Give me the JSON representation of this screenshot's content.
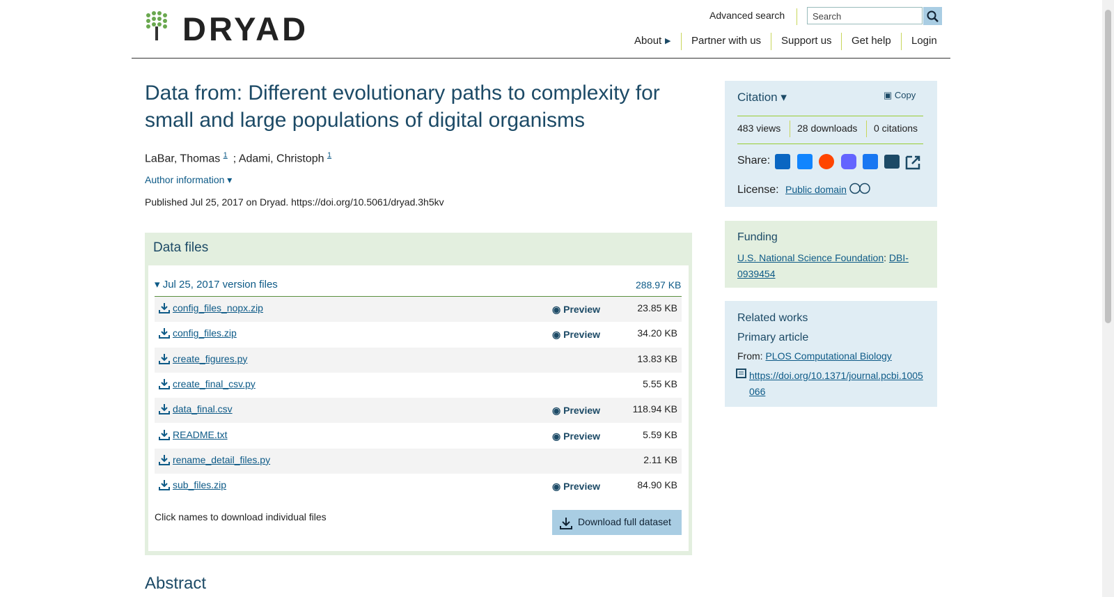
{
  "header": {
    "logo": "DRYAD",
    "advanced_search": "Advanced search",
    "search_placeholder": "Search",
    "nav": [
      "About",
      "Partner with us",
      "Support us",
      "Get help",
      "Login"
    ]
  },
  "dataset": {
    "title": "Data from: Different evolutionary paths to complexity for small and large populations of digital organisms",
    "authors": [
      {
        "name": "LaBar, Thomas",
        "sup": "1"
      },
      {
        "name": "Adami, Christoph",
        "sup": "1"
      }
    ],
    "author_separator": ";",
    "author_information": "Author information",
    "published": "Published Jul 25, 2017 on Dryad. https://doi.org/10.5061/dryad.3h5kv"
  },
  "data_files": {
    "heading": "Data files",
    "version": "Jul 25, 2017 version files",
    "total": "288.97 KB",
    "preview_label": "Preview",
    "files": [
      {
        "name": "config_files_nopx.zip",
        "size": "23.85 KB",
        "preview": true
      },
      {
        "name": "config_files.zip",
        "size": "34.20 KB",
        "preview": true
      },
      {
        "name": "create_figures.py",
        "size": "13.83 KB",
        "preview": false
      },
      {
        "name": "create_final_csv.py",
        "size": "5.55 KB",
        "preview": false
      },
      {
        "name": "data_final.csv",
        "size": "118.94 KB",
        "preview": true
      },
      {
        "name": "README.txt",
        "size": "5.59 KB",
        "preview": true
      },
      {
        "name": "rename_detail_files.py",
        "size": "2.11 KB",
        "preview": false
      },
      {
        "name": "sub_files.zip",
        "size": "84.90 KB",
        "preview": true
      }
    ],
    "note": "Click names to download individual files",
    "download": "Download full dataset"
  },
  "abstract_heading": "Abstract",
  "sidebar": {
    "citation": "Citation",
    "copy": "Copy",
    "metrics": [
      "483 views",
      "28 downloads",
      "0 citations"
    ],
    "share": "Share:",
    "license_label": "License:",
    "license": "Public domain",
    "funding": {
      "heading": "Funding",
      "funder": "U.S. National Science Foundation",
      "separator": ":",
      "award": "DBI-0939454"
    },
    "related": {
      "heading": "Related works",
      "type": "Primary article",
      "from_label": "From:",
      "journal": "PLOS Computational Biology",
      "doi": "https://doi.org/10.1371/journal.pcbi.1005066"
    }
  }
}
